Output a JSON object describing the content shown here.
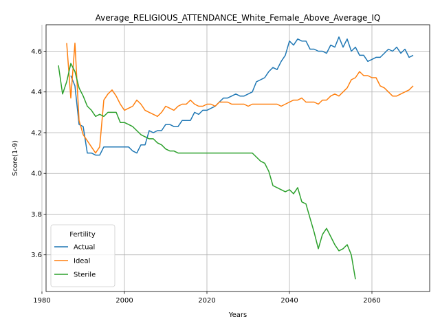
{
  "chart_data": {
    "type": "line",
    "title": "Average_RELIGIOUS_ATTENDANCE_White_Female_Above_Average_IQ",
    "xlabel": "Years",
    "ylabel": "Score(1-9)",
    "xlim": [
      1981,
      2074
    ],
    "ylim": [
      3.42,
      4.73
    ],
    "x_ticks": [
      1980,
      2000,
      2020,
      2040,
      2060
    ],
    "y_ticks": [
      3.6,
      3.8,
      4.0,
      4.2,
      4.4,
      4.6
    ],
    "y_tick_labels": [
      "3.6",
      "3.8",
      "4.0",
      "4.2",
      "4.4",
      "4.6"
    ],
    "grid": true,
    "legend": {
      "title": "Fertility",
      "placement": "lower-left"
    },
    "series": [
      {
        "name": "Actual",
        "color": "#1f77b4",
        "x": [
          1987,
          1988,
          1989,
          1990,
          1991,
          1992,
          1993,
          1994,
          1995,
          1996,
          1997,
          1998,
          1999,
          2000,
          2001,
          2002,
          2003,
          2004,
          2005,
          2006,
          2007,
          2008,
          2009,
          2010,
          2011,
          2012,
          2013,
          2014,
          2015,
          2016,
          2017,
          2018,
          2019,
          2020,
          2021,
          2022,
          2023,
          2024,
          2025,
          2026,
          2027,
          2028,
          2029,
          2030,
          2031,
          2032,
          2033,
          2034,
          2035,
          2036,
          2037,
          2038,
          2039,
          2040,
          2041,
          2042,
          2043,
          2044,
          2045,
          2046,
          2047,
          2048,
          2049,
          2050,
          2051,
          2052,
          2053,
          2054,
          2055,
          2056,
          2057,
          2058,
          2059,
          2060,
          2061,
          2062,
          2063,
          2064,
          2065,
          2066,
          2067,
          2068,
          2069,
          2070
        ],
        "y": [
          4.48,
          4.43,
          4.24,
          4.23,
          4.1,
          4.1,
          4.09,
          4.09,
          4.13,
          4.13,
          4.13,
          4.13,
          4.13,
          4.13,
          4.13,
          4.11,
          4.1,
          4.14,
          4.14,
          4.21,
          4.2,
          4.21,
          4.21,
          4.24,
          4.24,
          4.23,
          4.23,
          4.26,
          4.26,
          4.26,
          4.3,
          4.29,
          4.31,
          4.31,
          4.32,
          4.33,
          4.35,
          4.37,
          4.37,
          4.38,
          4.39,
          4.38,
          4.38,
          4.39,
          4.4,
          4.45,
          4.46,
          4.47,
          4.5,
          4.52,
          4.51,
          4.55,
          4.58,
          4.65,
          4.63,
          4.66,
          4.65,
          4.65,
          4.61,
          4.61,
          4.6,
          4.6,
          4.59,
          4.63,
          4.62,
          4.67,
          4.62,
          4.66,
          4.6,
          4.62,
          4.58,
          4.58,
          4.55,
          4.56,
          4.57,
          4.57,
          4.59,
          4.61,
          4.6,
          4.62,
          4.59,
          4.61,
          4.57,
          4.58
        ]
      },
      {
        "name": "Ideal",
        "color": "#ff7f0e",
        "x": [
          1986,
          1987,
          1988,
          1989,
          1990,
          1991,
          1992,
          1993,
          1994,
          1995,
          1996,
          1997,
          1998,
          1999,
          2000,
          2001,
          2002,
          2003,
          2004,
          2005,
          2006,
          2007,
          2008,
          2009,
          2010,
          2011,
          2012,
          2013,
          2014,
          2015,
          2016,
          2017,
          2018,
          2019,
          2020,
          2021,
          2022,
          2023,
          2024,
          2025,
          2026,
          2027,
          2028,
          2029,
          2030,
          2031,
          2032,
          2033,
          2034,
          2035,
          2036,
          2037,
          2038,
          2039,
          2040,
          2041,
          2042,
          2043,
          2044,
          2045,
          2046,
          2047,
          2048,
          2049,
          2050,
          2051,
          2052,
          2053,
          2054,
          2055,
          2056,
          2057,
          2058,
          2059,
          2060,
          2061,
          2062,
          2063,
          2064,
          2065,
          2066,
          2067,
          2068,
          2069,
          2070
        ],
        "y": [
          4.64,
          4.37,
          4.64,
          4.26,
          4.19,
          4.16,
          4.13,
          4.1,
          4.13,
          4.36,
          4.39,
          4.41,
          4.38,
          4.34,
          4.31,
          4.32,
          4.33,
          4.36,
          4.34,
          4.31,
          4.3,
          4.29,
          4.28,
          4.3,
          4.33,
          4.32,
          4.31,
          4.33,
          4.34,
          4.34,
          4.36,
          4.34,
          4.33,
          4.33,
          4.34,
          4.34,
          4.33,
          4.35,
          4.35,
          4.35,
          4.34,
          4.34,
          4.34,
          4.34,
          4.33,
          4.34,
          4.34,
          4.34,
          4.34,
          4.34,
          4.34,
          4.34,
          4.33,
          4.34,
          4.35,
          4.36,
          4.36,
          4.37,
          4.35,
          4.35,
          4.35,
          4.34,
          4.36,
          4.36,
          4.38,
          4.39,
          4.38,
          4.4,
          4.42,
          4.46,
          4.47,
          4.5,
          4.48,
          4.48,
          4.47,
          4.47,
          4.43,
          4.42,
          4.4,
          4.38,
          4.38,
          4.39,
          4.4,
          4.41,
          4.43
        ]
      },
      {
        "name": "Sterile",
        "color": "#2ca02c",
        "x": [
          1984,
          1985,
          1986,
          1987,
          1988,
          1989,
          1990,
          1991,
          1992,
          1993,
          1994,
          1995,
          1996,
          1997,
          1998,
          1999,
          2000,
          2001,
          2002,
          2003,
          2004,
          2005,
          2006,
          2007,
          2008,
          2009,
          2010,
          2011,
          2012,
          2013,
          2014,
          2015,
          2016,
          2017,
          2018,
          2019,
          2020,
          2021,
          2022,
          2023,
          2024,
          2025,
          2026,
          2027,
          2028,
          2029,
          2030,
          2031,
          2032,
          2033,
          2034,
          2035,
          2036,
          2037,
          2038,
          2039,
          2040,
          2041,
          2042,
          2043,
          2044,
          2045,
          2046,
          2047,
          2048,
          2049,
          2050,
          2051,
          2052,
          2053,
          2054,
          2055,
          2056
        ],
        "y": [
          4.53,
          4.39,
          4.45,
          4.54,
          4.5,
          4.42,
          4.38,
          4.33,
          4.31,
          4.28,
          4.29,
          4.28,
          4.3,
          4.3,
          4.3,
          4.25,
          4.25,
          4.24,
          4.23,
          4.21,
          4.19,
          4.18,
          4.17,
          4.17,
          4.15,
          4.14,
          4.12,
          4.11,
          4.11,
          4.1,
          4.1,
          4.1,
          4.1,
          4.1,
          4.1,
          4.1,
          4.1,
          4.1,
          4.1,
          4.1,
          4.1,
          4.1,
          4.1,
          4.1,
          4.1,
          4.1,
          4.1,
          4.1,
          4.08,
          4.06,
          4.05,
          4.01,
          3.94,
          3.93,
          3.92,
          3.91,
          3.92,
          3.9,
          3.93,
          3.86,
          3.85,
          3.78,
          3.71,
          3.63,
          3.7,
          3.73,
          3.69,
          3.65,
          3.62,
          3.63,
          3.65,
          3.6,
          3.48
        ]
      }
    ]
  }
}
